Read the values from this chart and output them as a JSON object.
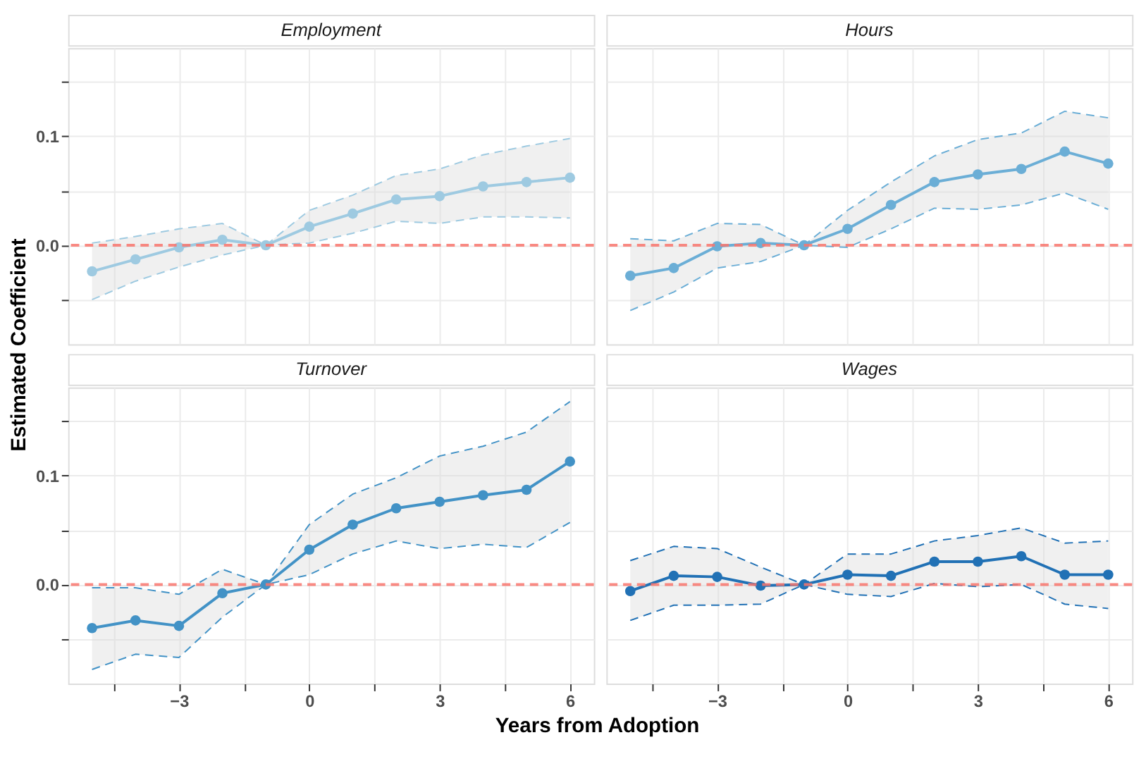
{
  "chart_data": [
    {
      "type": "line",
      "title": "Employment",
      "ylabel": "Estimated Coefficient",
      "x": [
        -5,
        -4,
        -3,
        -2,
        -1,
        0,
        1,
        2,
        3,
        4,
        5,
        6
      ],
      "series": [
        {
          "color": "#9ecae1",
          "values": [
            -0.024,
            -0.013,
            -0.002,
            0.005,
            0,
            0.017,
            0.029,
            0.042,
            0.045,
            0.054,
            0.058,
            0.062
          ],
          "lower": [
            -0.05,
            -0.033,
            -0.02,
            -0.009,
            0,
            0.002,
            0.011,
            0.022,
            0.02,
            0.026,
            0.026,
            0.025
          ],
          "upper": [
            0.002,
            0.008,
            0.015,
            0.02,
            0,
            0.032,
            0.046,
            0.064,
            0.07,
            0.083,
            0.091,
            0.098
          ]
        },
        {
          "color": "#9ecae1",
          "line_style": "dashed",
          "marker": "none",
          "values": [
            -0.05,
            -0.033,
            -0.02,
            -0.009,
            0,
            0.002,
            0.011,
            0.022,
            0.02,
            0.026,
            0.026,
            0.025
          ]
        },
        {
          "color": "#9ecae1",
          "line_style": "dashed",
          "marker": "none",
          "values": [
            0.002,
            0.008,
            0.015,
            0.02,
            0,
            0.032,
            0.046,
            0.064,
            0.07,
            0.083,
            0.091,
            0.098
          ]
        }
      ],
      "ref_lines": [
        {
          "axis": "y",
          "value": 0,
          "color": "#f8766d",
          "line_style": "dashed"
        }
      ],
      "xlim": [
        -5.55,
        6.55
      ],
      "ylim": [
        -0.091,
        0.181
      ],
      "xticks": [
        {
          "value": -4.5,
          "label": null
        },
        {
          "value": -3,
          "label": null
        },
        {
          "value": -1.5,
          "label": null
        },
        {
          "value": 0,
          "label": null
        },
        {
          "value": 1.5,
          "label": null
        },
        {
          "value": 3,
          "label": null
        },
        {
          "value": 4.5,
          "label": null
        },
        {
          "value": 6,
          "label": null
        }
      ],
      "yticks": [
        {
          "value": -0.05,
          "label": null
        },
        {
          "value": 0,
          "label": "0.0"
        },
        {
          "value": 0.05,
          "label": null
        },
        {
          "value": 0.1,
          "label": "0.1"
        },
        {
          "value": 0.15,
          "label": null
        }
      ],
      "grid": true,
      "marker": "circle",
      "line_style": "solid",
      "tick_labels": "y"
    },
    {
      "type": "line",
      "title": "Hours",
      "x": [
        -5,
        -4,
        -3,
        -2,
        -1,
        0,
        1,
        2,
        3,
        4,
        5,
        6
      ],
      "series": [
        {
          "color": "#6baed6",
          "values": [
            -0.028,
            -0.021,
            -0.001,
            0.002,
            0,
            0.015,
            0.037,
            0.058,
            0.065,
            0.07,
            0.086,
            0.075
          ],
          "lower": [
            -0.06,
            -0.043,
            -0.021,
            -0.015,
            0,
            -0.002,
            0.015,
            0.034,
            0.033,
            0.037,
            0.048,
            0.033
          ],
          "upper": [
            0.006,
            0.004,
            0.02,
            0.019,
            0,
            0.032,
            0.058,
            0.082,
            0.097,
            0.103,
            0.123,
            0.117
          ]
        },
        {
          "color": "#6baed6",
          "line_style": "dashed",
          "marker": "none",
          "values": [
            -0.06,
            -0.043,
            -0.021,
            -0.015,
            0,
            -0.002,
            0.015,
            0.034,
            0.033,
            0.037,
            0.048,
            0.033
          ]
        },
        {
          "color": "#6baed6",
          "line_style": "dashed",
          "marker": "none",
          "values": [
            0.006,
            0.004,
            0.02,
            0.019,
            0,
            0.032,
            0.058,
            0.082,
            0.097,
            0.103,
            0.123,
            0.117
          ]
        }
      ],
      "ref_lines": [
        {
          "axis": "y",
          "value": 0,
          "color": "#f8766d",
          "line_style": "dashed"
        }
      ],
      "xlim": [
        -5.55,
        6.55
      ],
      "ylim": [
        -0.091,
        0.181
      ],
      "xticks": [
        {
          "value": -4.5,
          "label": null
        },
        {
          "value": -3,
          "label": null
        },
        {
          "value": -1.5,
          "label": null
        },
        {
          "value": 0,
          "label": null
        },
        {
          "value": 1.5,
          "label": null
        },
        {
          "value": 3,
          "label": null
        },
        {
          "value": 4.5,
          "label": null
        },
        {
          "value": 6,
          "label": null
        }
      ],
      "yticks": [
        {
          "value": -0.05,
          "label": null
        },
        {
          "value": 0,
          "label": null
        },
        {
          "value": 0.05,
          "label": null
        },
        {
          "value": 0.1,
          "label": null
        },
        {
          "value": 0.15,
          "label": null
        }
      ],
      "grid": true,
      "marker": "circle",
      "line_style": "solid",
      "tick_labels": false
    },
    {
      "type": "line",
      "title": "Turnover",
      "xlabel": "Years from Adoption",
      "x": [
        -5,
        -4,
        -3,
        -2,
        -1,
        0,
        1,
        2,
        3,
        4,
        5,
        6
      ],
      "series": [
        {
          "color": "#4292c6",
          "values": [
            -0.04,
            -0.033,
            -0.038,
            -0.008,
            0,
            0.032,
            0.055,
            0.07,
            0.076,
            0.082,
            0.087,
            0.113
          ],
          "lower": [
            -0.078,
            -0.064,
            -0.067,
            -0.03,
            0,
            0.009,
            0.028,
            0.04,
            0.033,
            0.037,
            0.034,
            0.057
          ],
          "upper": [
            -0.003,
            -0.003,
            -0.009,
            0.014,
            0,
            0.055,
            0.083,
            0.098,
            0.118,
            0.127,
            0.14,
            0.168
          ]
        },
        {
          "color": "#4292c6",
          "line_style": "dashed",
          "marker": "none",
          "values": [
            -0.078,
            -0.064,
            -0.067,
            -0.03,
            0,
            0.009,
            0.028,
            0.04,
            0.033,
            0.037,
            0.034,
            0.057
          ]
        },
        {
          "color": "#4292c6",
          "line_style": "dashed",
          "marker": "none",
          "values": [
            -0.003,
            -0.003,
            -0.009,
            0.014,
            0,
            0.055,
            0.083,
            0.098,
            0.118,
            0.127,
            0.14,
            0.168
          ]
        }
      ],
      "ref_lines": [
        {
          "axis": "y",
          "value": 0,
          "color": "#f8766d",
          "line_style": "dashed"
        }
      ],
      "xlim": [
        -5.55,
        6.55
      ],
      "ylim": [
        -0.091,
        0.181
      ],
      "xticks": [
        {
          "value": -4.5,
          "label": null
        },
        {
          "value": -3,
          "label": "−3"
        },
        {
          "value": -1.5,
          "label": null
        },
        {
          "value": 0,
          "label": "0"
        },
        {
          "value": 1.5,
          "label": null
        },
        {
          "value": 3,
          "label": "3"
        },
        {
          "value": 4.5,
          "label": null
        },
        {
          "value": 6,
          "label": "6"
        }
      ],
      "yticks": [
        {
          "value": -0.05,
          "label": null
        },
        {
          "value": 0,
          "label": "0.0"
        },
        {
          "value": 0.05,
          "label": null
        },
        {
          "value": 0.1,
          "label": "0.1"
        },
        {
          "value": 0.15,
          "label": null
        }
      ],
      "grid": true,
      "marker": "circle",
      "line_style": "solid"
    },
    {
      "type": "line",
      "title": "Wages",
      "x": [
        -5,
        -4,
        -3,
        -2,
        -1,
        0,
        1,
        2,
        3,
        4,
        5,
        6
      ],
      "series": [
        {
          "color": "#2171b5",
          "values": [
            -0.006,
            0.008,
            0.007,
            -0.001,
            0,
            0.009,
            0.008,
            0.021,
            0.021,
            0.026,
            0.009,
            0.009
          ],
          "lower": [
            -0.033,
            -0.019,
            -0.019,
            -0.018,
            0,
            -0.009,
            -0.011,
            0.001,
            -0.002,
            0,
            -0.018,
            -0.022
          ],
          "upper": [
            0.022,
            0.035,
            0.033,
            0.016,
            0,
            0.028,
            0.028,
            0.04,
            0.045,
            0.052,
            0.038,
            0.04
          ]
        },
        {
          "color": "#2171b5",
          "line_style": "dashed",
          "marker": "none",
          "values": [
            -0.033,
            -0.019,
            -0.019,
            -0.018,
            0,
            -0.009,
            -0.011,
            0.001,
            -0.002,
            0,
            -0.018,
            -0.022
          ]
        },
        {
          "color": "#2171b5",
          "line_style": "dashed",
          "marker": "none",
          "values": [
            0.022,
            0.035,
            0.033,
            0.016,
            0,
            0.028,
            0.028,
            0.04,
            0.045,
            0.052,
            0.038,
            0.04
          ]
        }
      ],
      "ref_lines": [
        {
          "axis": "y",
          "value": 0,
          "color": "#f8766d",
          "line_style": "dashed"
        }
      ],
      "xlim": [
        -5.55,
        6.55
      ],
      "ylim": [
        -0.091,
        0.181
      ],
      "xticks": [
        {
          "value": -4.5,
          "label": null
        },
        {
          "value": -3,
          "label": "−3"
        },
        {
          "value": -1.5,
          "label": null
        },
        {
          "value": 0,
          "label": "0"
        },
        {
          "value": 1.5,
          "label": null
        },
        {
          "value": 3,
          "label": "3"
        },
        {
          "value": 4.5,
          "label": null
        },
        {
          "value": 6,
          "label": "6"
        }
      ],
      "yticks": [
        {
          "value": -0.05,
          "label": null
        },
        {
          "value": 0,
          "label": null
        },
        {
          "value": 0.05,
          "label": null
        },
        {
          "value": 0.1,
          "label": null
        },
        {
          "value": 0.15,
          "label": null
        }
      ],
      "grid": true,
      "marker": "circle",
      "line_style": "solid",
      "tick_labels": "x"
    }
  ]
}
